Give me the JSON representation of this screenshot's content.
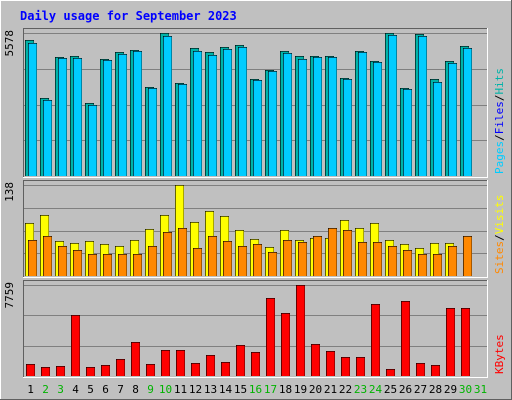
{
  "chart_data": {
    "type": "bar",
    "title": "Daily usage for September 2023",
    "days": [
      "1",
      "2",
      "3",
      "4",
      "5",
      "6",
      "7",
      "8",
      "9",
      "10",
      "11",
      "12",
      "13",
      "14",
      "15",
      "16",
      "17",
      "18",
      "19",
      "20",
      "21",
      "22",
      "23",
      "24",
      "25",
      "26",
      "27",
      "28",
      "29",
      "30",
      "31"
    ],
    "weekend_days": [
      "2",
      "3",
      "9",
      "10",
      "16",
      "17",
      "23",
      "24",
      "30",
      "31"
    ],
    "panels": [
      {
        "id": "top",
        "ymax_label": "5578",
        "ymax": 5578,
        "series": [
          {
            "name": "Hits",
            "color": "#00b3a8",
            "values": [
              5290,
              3040,
              4660,
              4700,
              2830,
              4580,
              4830,
              4900,
              3480,
              5570,
              3630,
              4990,
              4830,
              5020,
              5100,
              3800,
              4140,
              4880,
              4680,
              4700,
              4700,
              3840,
              4880,
              4500,
              5578,
              3450,
              5550,
              3770,
              4500,
              5060,
              null
            ]
          },
          {
            "name": "Files",
            "color": "#0000ff",
            "values": [
              null,
              null,
              null,
              null,
              null,
              null,
              null,
              null,
              null,
              null,
              null,
              null,
              null,
              null,
              null,
              null,
              null,
              null,
              null,
              null,
              null,
              null,
              null,
              null,
              null,
              null,
              null,
              null,
              null,
              null,
              null
            ]
          },
          {
            "name": "Pages",
            "color": "#00ccff",
            "values": [
              5170,
              2980,
              4610,
              4620,
              2760,
              4530,
              4750,
              4870,
              3420,
              5460,
              3570,
              4870,
              4720,
              4960,
              5040,
              3760,
              4080,
              4810,
              4560,
              4640,
              4640,
              3770,
              4830,
              4450,
              5500,
              3400,
              5480,
              3680,
              4420,
              4980,
              null
            ]
          }
        ],
        "side_order": [
          "Pages",
          "Files",
          "Hits"
        ]
      },
      {
        "id": "middle",
        "ymax_label": "138",
        "ymax": 138,
        "series": [
          {
            "name": "Visits",
            "color": "#ffff00",
            "values": [
              81,
              92,
              53,
              50,
              53,
              49,
              45,
              55,
              71,
              92,
              138,
              82,
              98,
              91,
              69,
              56,
              44,
              69,
              54,
              57,
              58,
              85,
              73,
              81,
              54,
              48,
              43,
              50,
              50,
              null,
              null
            ]
          },
          {
            "name": "Sites",
            "color": "#ff8800",
            "values": [
              55,
              60,
              46,
              40,
              34,
              34,
              33,
              33,
              45,
              66,
              73,
              43,
              61,
              53,
              46,
              48,
              36,
              54,
              52,
              60,
              73,
              69,
              51,
              51,
              46,
              39,
              34,
              34,
              46,
              60,
              null
            ]
          }
        ],
        "side_order": [
          "Sites",
          "Visits"
        ]
      },
      {
        "id": "bottom",
        "ymax_label": "7759",
        "ymax": 7759,
        "series": [
          {
            "name": "KBytes",
            "color": "#ff0000",
            "values": [
              1040,
              780,
              830,
              5190,
              740,
              950,
              1460,
              2900,
              1000,
              2210,
              2230,
              1140,
              1810,
              1160,
              2650,
              2030,
              6650,
              5390,
              7759,
              2720,
              2140,
              1640,
              1590,
              6100,
              570,
              6420,
              1110,
              980,
              5840,
              5790,
              null
            ]
          }
        ],
        "side_order": [
          "KBytes"
        ]
      }
    ],
    "colors": {
      "background": "#c0c0c0",
      "frame_light": "#ffffff",
      "frame_dark": "#606060",
      "title_color": "#0000ff",
      "weekday_label": "#000000",
      "weekend_label": "#00b300",
      "gridline": "#808080"
    },
    "grid": true,
    "legend_position": "right-vertical"
  }
}
